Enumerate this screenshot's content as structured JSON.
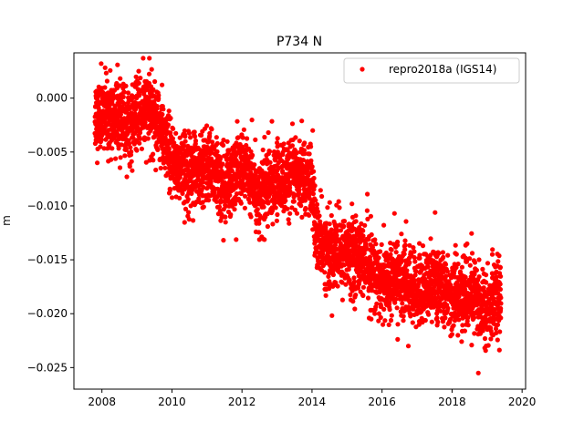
{
  "chart_data": {
    "type": "scatter",
    "title": "P734 N",
    "xlabel": "",
    "ylabel": "m",
    "xlim": [
      2007.2,
      2020.1
    ],
    "ylim": [
      -0.027,
      0.0042
    ],
    "xticks": [
      2008,
      2010,
      2012,
      2014,
      2016,
      2018,
      2020
    ],
    "yticks": [
      0.0,
      -0.005,
      -0.01,
      -0.015,
      -0.02,
      -0.025
    ],
    "ytick_labels": [
      "0.000",
      "−0.005",
      "−0.010",
      "−0.015",
      "−0.020",
      "−0.025"
    ],
    "grid": false,
    "legend_position": "top-right",
    "series": [
      {
        "name": "repro2018a (IGS14)",
        "color": "#ff0000",
        "marker": "circle",
        "time_range": [
          2007.8,
          2019.4
        ],
        "trend_x": [
          2007.8,
          2008.3,
          2008.8,
          2009.2,
          2009.5,
          2009.8,
          2010.0,
          2010.5,
          2011.0,
          2011.5,
          2012.0,
          2012.5,
          2013.0,
          2013.5,
          2014.0,
          2014.1,
          2014.5,
          2015.0,
          2015.5,
          2016.0,
          2016.5,
          2017.0,
          2017.5,
          2018.0,
          2018.5,
          2019.0,
          2019.4
        ],
        "trend_y": [
          -0.0015,
          -0.0018,
          -0.0025,
          -0.001,
          -0.0015,
          -0.004,
          -0.006,
          -0.0068,
          -0.0062,
          -0.0082,
          -0.006,
          -0.009,
          -0.0075,
          -0.0072,
          -0.0078,
          -0.0125,
          -0.0145,
          -0.014,
          -0.015,
          -0.0175,
          -0.0165,
          -0.018,
          -0.017,
          -0.0185,
          -0.018,
          -0.0195,
          -0.0185
        ],
        "scatter_sd": 0.0017,
        "notable_points": [
          {
            "x": 2007.98,
            "y": 0.0032
          },
          {
            "x": 2009.05,
            "y": 0.0025
          },
          {
            "x": 2014.02,
            "y": -0.003
          },
          {
            "x": 2016.75,
            "y": -0.023
          },
          {
            "x": 2018.28,
            "y": -0.0188
          },
          {
            "x": 2018.4,
            "y": -0.015
          },
          {
            "x": 2018.75,
            "y": -0.0255
          },
          {
            "x": 2019.15,
            "y": -0.0145
          },
          {
            "x": 2019.38,
            "y": -0.0157
          }
        ]
      }
    ]
  }
}
